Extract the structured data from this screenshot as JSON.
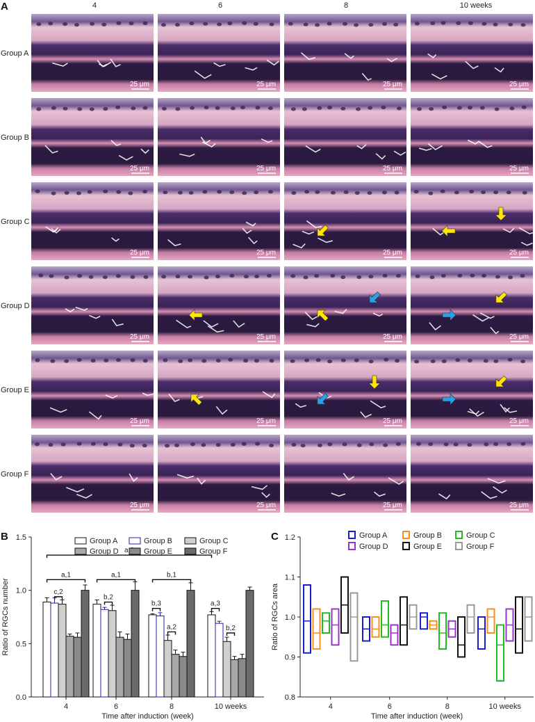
{
  "panel_labels": [
    "A",
    "B",
    "C"
  ],
  "micrographs": {
    "columns": [
      "4",
      "6",
      "8",
      "10 weeks"
    ],
    "rows": [
      "Group A",
      "Group B",
      "Group C",
      "Group D",
      "Group E",
      "Group F"
    ],
    "scale_bar": "25 μm",
    "colors": {
      "stroma": "#e4a9c0",
      "nuclei": "#3b2358",
      "deep": "#241733",
      "arrow_yellow": "#ffe600",
      "arrow_blue": "#2aa0e8"
    },
    "arrows": [
      {
        "row": 2,
        "col": 2,
        "color": "yellow",
        "dir": "down-left"
      },
      {
        "row": 2,
        "col": 3,
        "color": "yellow",
        "dir": "left"
      },
      {
        "row": 2,
        "col": 3,
        "color": "yellow",
        "dir": "down"
      },
      {
        "row": 3,
        "col": 1,
        "color": "yellow",
        "dir": "left"
      },
      {
        "row": 3,
        "col": 2,
        "color": "yellow",
        "dir": "up-left"
      },
      {
        "row": 3,
        "col": 2,
        "color": "blue",
        "dir": "down-left"
      },
      {
        "row": 3,
        "col": 3,
        "color": "blue",
        "dir": "right"
      },
      {
        "row": 3,
        "col": 3,
        "color": "yellow",
        "dir": "down-left"
      },
      {
        "row": 4,
        "col": 1,
        "color": "yellow",
        "dir": "up-left"
      },
      {
        "row": 4,
        "col": 2,
        "color": "blue",
        "dir": "down-left"
      },
      {
        "row": 4,
        "col": 2,
        "color": "yellow",
        "dir": "down"
      },
      {
        "row": 4,
        "col": 3,
        "color": "blue",
        "dir": "right"
      },
      {
        "row": 4,
        "col": 3,
        "color": "yellow",
        "dir": "down-left"
      }
    ]
  },
  "chart_data": [
    {
      "type": "bar",
      "panel": "B",
      "xlabel": "Time after induction (week)",
      "ylabel": "Ratio of RGCs number",
      "categories": [
        "4",
        "6",
        "8",
        "10 weeks"
      ],
      "ylim": [
        0,
        1.5
      ],
      "yticks": [
        "0.0",
        "0.5",
        "1.0",
        "1.5"
      ],
      "legend_position": "top",
      "series": [
        {
          "name": "Group A",
          "fill": "#ffffff",
          "stroke": "#111111",
          "values": [
            0.89,
            0.87,
            0.77,
            0.77
          ],
          "errors": [
            0.04,
            0.04,
            0.01,
            0.03
          ]
        },
        {
          "name": "Group B",
          "fill": "#ffffff",
          "stroke": "#2020a0",
          "values": [
            0.88,
            0.82,
            0.76,
            0.69
          ],
          "errors": [
            0.05,
            0.02,
            0.03,
            0.02
          ]
        },
        {
          "name": "Group C",
          "fill": "#d0d0d0",
          "stroke": "#111111",
          "values": [
            0.87,
            0.81,
            0.53,
            0.52
          ],
          "errors": [
            0.04,
            0.05,
            0.05,
            0.04
          ]
        },
        {
          "name": "Group D",
          "fill": "#a8a8a8",
          "stroke": "#111111",
          "values": [
            0.57,
            0.56,
            0.4,
            0.35
          ],
          "errors": [
            0.02,
            0.05,
            0.04,
            0.03
          ]
        },
        {
          "name": "Group E",
          "fill": "#8a8a8a",
          "stroke": "#111111",
          "values": [
            0.56,
            0.54,
            0.38,
            0.36
          ],
          "errors": [
            0.04,
            0.05,
            0.04,
            0.04
          ]
        },
        {
          "name": "Group F",
          "fill": "#6a6a6a",
          "stroke": "#111111",
          "values": [
            1.0,
            1.0,
            1.0,
            1.0
          ],
          "errors": [
            0.05,
            0.08,
            0.07,
            0.03
          ]
        }
      ],
      "annotations": [
        {
          "label": "a,3",
          "category": 0,
          "from": 0,
          "to_category": 3,
          "to": 0,
          "level": 1.33
        },
        {
          "label": "a,1",
          "category": 0,
          "from": 0,
          "to": 5,
          "level": 1.1
        },
        {
          "label": "c,2",
          "category": 0,
          "from": 1,
          "to": 2,
          "level": 0.94
        },
        {
          "label": "a,1",
          "category": 1,
          "from": 0,
          "to": 5,
          "level": 1.1
        },
        {
          "label": "b,2",
          "category": 1,
          "from": 1,
          "to": 2,
          "level": 0.89
        },
        {
          "label": "b,1",
          "category": 2,
          "from": 0,
          "to": 5,
          "level": 1.1
        },
        {
          "label": "b,3",
          "category": 2,
          "from": 0,
          "to": 1,
          "level": 0.83
        },
        {
          "label": "a,2",
          "category": 2,
          "from": 2,
          "to": 3,
          "level": 0.61
        },
        {
          "label": "a,3",
          "category": 3,
          "from": 0,
          "to": 1,
          "level": 0.83
        },
        {
          "label": "b,2",
          "category": 3,
          "from": 2,
          "to": 3,
          "level": 0.6
        }
      ]
    },
    {
      "type": "box",
      "panel": "C",
      "xlabel": "Time after induction (week)",
      "ylabel": "Ratio of RGCs area",
      "categories": [
        "4",
        "6",
        "8",
        "10 weeks"
      ],
      "ylim": [
        0.8,
        1.2
      ],
      "yticks": [
        "0.8",
        "0.9",
        "1.0",
        "1.1",
        "1.2"
      ],
      "legend_position": "top",
      "series": [
        {
          "name": "Group A",
          "color": "#1a1ad0",
          "boxes": [
            [
              0.91,
              0.99,
              1.08
            ],
            [
              0.94,
              0.97,
              1.0
            ],
            [
              0.97,
              1.0,
              1.01
            ],
            [
              0.92,
              0.97,
              1.0
            ]
          ]
        },
        {
          "name": "Group B",
          "color": "#ff8c1a",
          "boxes": [
            [
              0.92,
              0.96,
              1.02
            ],
            [
              0.95,
              0.97,
              1.0
            ],
            [
              0.97,
              0.98,
              0.99
            ],
            [
              0.96,
              1.0,
              1.02
            ]
          ]
        },
        {
          "name": "Group C",
          "color": "#22bb22",
          "boxes": [
            [
              0.96,
              0.99,
              1.01
            ],
            [
              0.95,
              0.98,
              1.04
            ],
            [
              0.92,
              0.96,
              1.01
            ],
            [
              0.84,
              0.93,
              0.98
            ]
          ]
        },
        {
          "name": "Group D",
          "color": "#9933cc",
          "boxes": [
            [
              0.93,
              0.98,
              1.02
            ],
            [
              0.93,
              0.96,
              0.98
            ],
            [
              0.95,
              0.97,
              0.99
            ],
            [
              0.94,
              0.98,
              1.02
            ]
          ]
        },
        {
          "name": "Group E",
          "color": "#111111",
          "boxes": [
            [
              0.96,
              1.03,
              1.1
            ],
            [
              0.93,
              0.98,
              1.05
            ],
            [
              0.9,
              0.93,
              1.0
            ],
            [
              0.91,
              0.97,
              1.05
            ]
          ]
        },
        {
          "name": "Group F",
          "color": "#999999",
          "boxes": [
            [
              0.89,
              1.0,
              1.06
            ],
            [
              0.97,
              1.0,
              1.03
            ],
            [
              0.96,
              1.0,
              1.03
            ],
            [
              0.94,
              1.0,
              1.05
            ]
          ]
        }
      ]
    }
  ]
}
